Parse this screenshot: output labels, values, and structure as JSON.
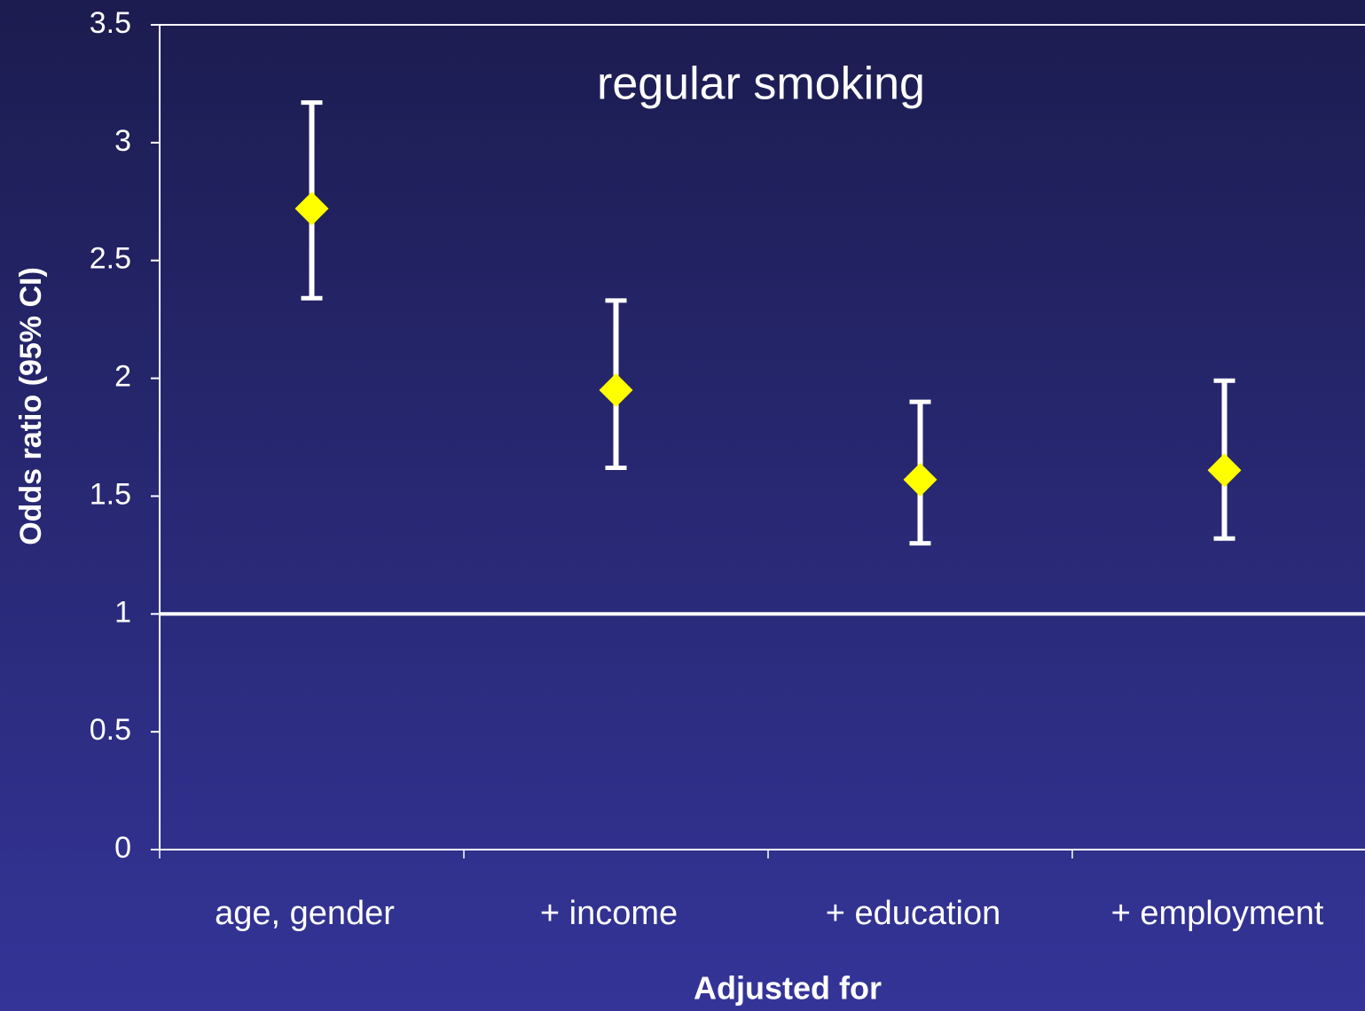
{
  "chart_data": {
    "type": "errorbar",
    "title": "regular smoking",
    "x_label": "Adjusted for",
    "y_label": "Odds ratio (95% CI)",
    "categories": [
      "age, gender",
      "+ income",
      "+ education",
      "+ employment"
    ],
    "values": [
      2.72,
      1.95,
      1.57,
      1.61
    ],
    "lower": [
      2.34,
      1.62,
      1.3,
      1.32
    ],
    "upper": [
      3.17,
      2.33,
      1.9,
      1.99
    ],
    "color": "#ffff00",
    "error_color": "#ffffff",
    "reference_line": 1,
    "ylim": [
      0,
      3.5
    ],
    "yticks": [
      0,
      0.5,
      1,
      1.5,
      2,
      2.5,
      3,
      3.5
    ],
    "grid": false
  }
}
